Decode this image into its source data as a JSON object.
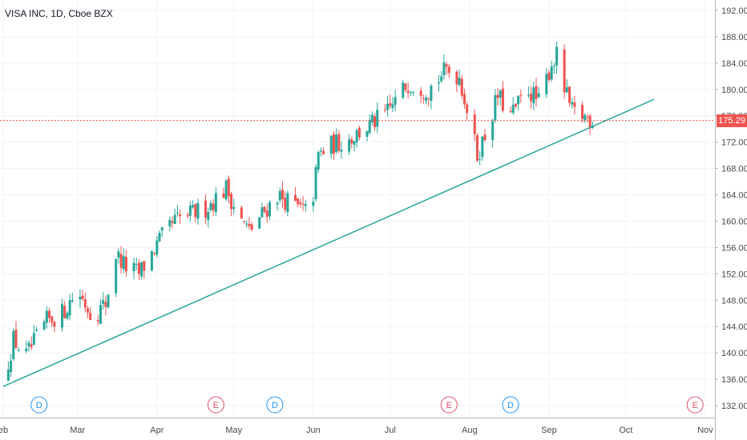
{
  "chart_data": {
    "type": "candlestick",
    "title": "VISA INC, 1D, Cboe BZX",
    "ylim": [
      130,
      194
    ],
    "y_ticks": [
      "132.00",
      "136.00",
      "140.00",
      "144.00",
      "148.00",
      "152.00",
      "156.00",
      "160.00",
      "164.00",
      "168.00",
      "172.00",
      "176.00",
      "180.00",
      "184.00",
      "188.00",
      "192.00"
    ],
    "x_ticks": [
      {
        "label": "eb",
        "date": "2020-02-01"
      },
      {
        "label": "Mar",
        "date": "2020-03-01"
      },
      {
        "label": "Apr",
        "date": "2020-04-01"
      },
      {
        "label": "May",
        "date": "2020-05-01"
      },
      {
        "label": "Jun",
        "date": "2020-06-01"
      },
      {
        "label": "Jul",
        "date": "2020-07-01"
      },
      {
        "label": "Aug",
        "date": "2020-08-01"
      },
      {
        "label": "Sep",
        "date": "2020-09-01"
      },
      {
        "label": "Oct",
        "date": "2020-10-01"
      },
      {
        "label": "Nov",
        "date": "2020-11-01"
      }
    ],
    "current_price": 175.29,
    "current_price_label": "175.29",
    "colors": {
      "up": "#26a69a",
      "down": "#ef5350",
      "grid": "#f0f3fa",
      "axis_text": "#4a4a4a",
      "price_line": "#ef5350",
      "trendline": "#26a69a",
      "dividend": "#2196f3",
      "earnings": "#e0506a"
    },
    "trendline": {
      "start": {
        "date": "2020-02-01",
        "price": 134.9
      },
      "end": {
        "date": "2020-10-12",
        "price": 178.5
      }
    },
    "events": [
      {
        "type": "D",
        "label": "D",
        "date": "2020-02-15"
      },
      {
        "type": "E",
        "label": "E",
        "date": "2020-04-24"
      },
      {
        "type": "D",
        "label": "D",
        "date": "2020-05-17"
      },
      {
        "type": "E",
        "label": "E",
        "date": "2020-07-24"
      },
      {
        "type": "D",
        "label": "D",
        "date": "2020-08-17"
      },
      {
        "type": "E",
        "label": "E",
        "date": "2020-10-28"
      }
    ],
    "anchors": [
      [
        "2020-02-01",
        135.5
      ],
      [
        "2020-02-05",
        142.0
      ],
      [
        "2020-02-10",
        139.5
      ],
      [
        "2020-02-18",
        144.8
      ],
      [
        "2020-02-24",
        146.0
      ],
      [
        "2020-03-01",
        149.5
      ],
      [
        "2020-03-07",
        145.5
      ],
      [
        "2020-03-12",
        147.5
      ],
      [
        "2020-03-16",
        155.0
      ],
      [
        "2020-03-20",
        153.0
      ],
      [
        "2020-03-25",
        152.0
      ],
      [
        "2020-04-02",
        157.0
      ],
      [
        "2020-04-08",
        160.0
      ],
      [
        "2020-04-14",
        161.0
      ],
      [
        "2020-04-20",
        162.0
      ],
      [
        "2020-04-28",
        165.0
      ],
      [
        "2020-05-04",
        160.0
      ],
      [
        "2020-05-07",
        158.5
      ],
      [
        "2020-05-12",
        161.0
      ],
      [
        "2020-05-18",
        164.0
      ],
      [
        "2020-05-26",
        162.0
      ],
      [
        "2020-05-31",
        161.0
      ],
      [
        "2020-06-03",
        170.0
      ],
      [
        "2020-06-08",
        171.5
      ],
      [
        "2020-06-15",
        172.5
      ],
      [
        "2020-06-23",
        174.5
      ],
      [
        "2020-06-30",
        176.5
      ],
      [
        "2020-07-08",
        181.0
      ],
      [
        "2020-07-16",
        180.0
      ],
      [
        "2020-07-23",
        183.0
      ],
      [
        "2020-07-28",
        182.0
      ],
      [
        "2020-07-31",
        177.0
      ],
      [
        "2020-08-04",
        170.0
      ],
      [
        "2020-08-08",
        174.0
      ],
      [
        "2020-08-12",
        179.0
      ],
      [
        "2020-08-17",
        176.0
      ],
      [
        "2020-08-24",
        180.0
      ],
      [
        "2020-08-28",
        178.0
      ],
      [
        "2020-09-02",
        184.0
      ],
      [
        "2020-09-05",
        185.5
      ],
      [
        "2020-09-07",
        180.0
      ],
      [
        "2020-09-10",
        176.5
      ],
      [
        "2020-09-14",
        176.0
      ],
      [
        "2020-09-18",
        175.3
      ]
    ]
  }
}
